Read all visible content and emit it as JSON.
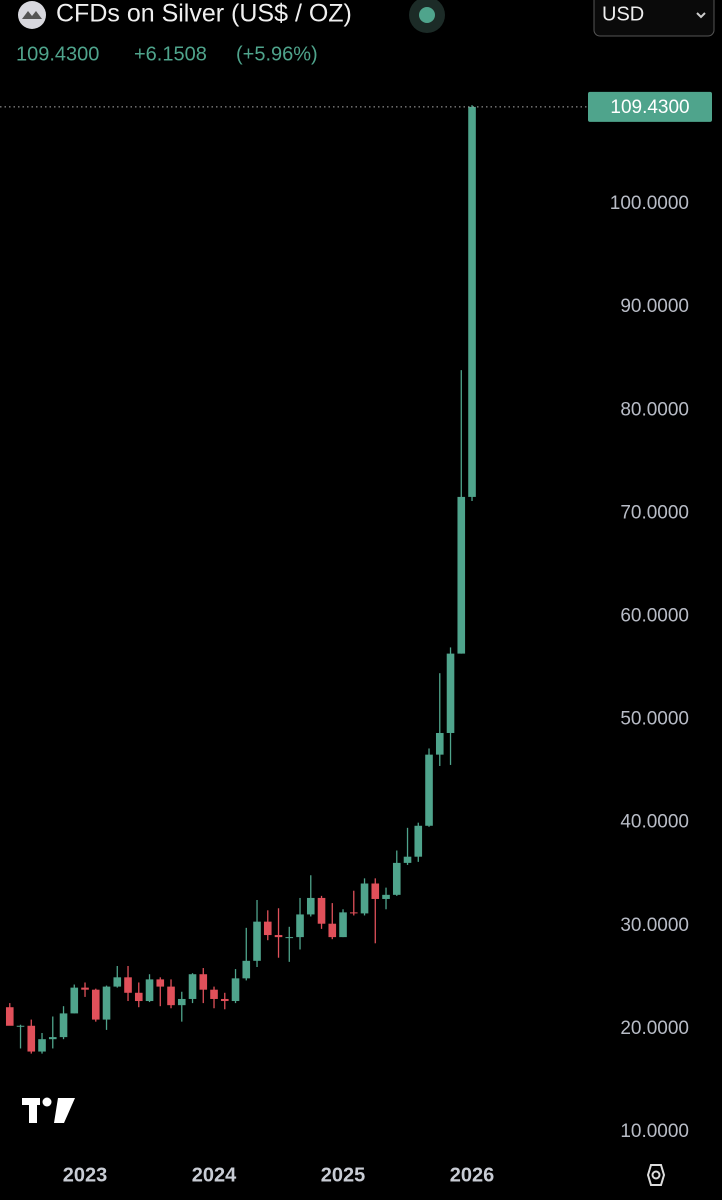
{
  "header": {
    "title": "CFDs on Silver (US$ / OZ)",
    "price": "109.4300",
    "change": "+6.1508",
    "change_pct": "(+5.96%)",
    "currency": "USD"
  },
  "chart_data": {
    "type": "candlestick",
    "categories": [
      null,
      null,
      null,
      null,
      null,
      null,
      null,
      "2023",
      null,
      null,
      null,
      null,
      null,
      null,
      null,
      null,
      null,
      null,
      null,
      "2024",
      null,
      null,
      null,
      null,
      null,
      null,
      null,
      null,
      null,
      null,
      null,
      "2025",
      null,
      null,
      null,
      null,
      null,
      null,
      null,
      null,
      null,
      null,
      null,
      "2026"
    ],
    "open": [
      22.1,
      20.3,
      20.3,
      17.8,
      19.0,
      19.2,
      21.5,
      24.0,
      23.8,
      20.9,
      24.1,
      25.0,
      23.5,
      22.7,
      24.8,
      24.1,
      22.3,
      22.9,
      25.3,
      23.8,
      22.9,
      22.7,
      24.9,
      26.6,
      30.4,
      29.1,
      28.9,
      28.9,
      31.1,
      32.7,
      30.2,
      28.9,
      31.3,
      31.2,
      34.1,
      32.6,
      33.0,
      36.1,
      36.7,
      39.7,
      46.6,
      48.7,
      56.4,
      71.6
    ],
    "high": [
      22.5,
      20.4,
      20.9,
      19.6,
      21.2,
      22.2,
      24.3,
      24.5,
      23.9,
      24.2,
      26.1,
      26.1,
      24.5,
      25.3,
      25.0,
      24.8,
      23.6,
      25.4,
      25.9,
      24.1,
      23.5,
      25.8,
      29.8,
      32.5,
      31.5,
      31.7,
      29.9,
      32.7,
      34.9,
      32.9,
      32.2,
      31.6,
      33.4,
      34.6,
      34.6,
      33.7,
      37.3,
      39.5,
      40.0,
      47.2,
      54.5,
      57.0,
      83.9,
      109.6
    ],
    "low": [
      20.4,
      18.1,
      17.6,
      17.6,
      18.1,
      19.0,
      21.5,
      23.1,
      20.7,
      19.9,
      24.0,
      22.7,
      22.1,
      22.6,
      22.2,
      22.0,
      20.7,
      22.5,
      22.5,
      22.0,
      21.9,
      22.5,
      24.7,
      26.0,
      28.6,
      26.9,
      26.5,
      27.7,
      30.9,
      29.7,
      28.7,
      28.9,
      31.0,
      31.0,
      28.3,
      31.6,
      32.9,
      35.9,
      36.2,
      39.6,
      45.5,
      45.6,
      56.4,
      71.2
    ],
    "close": [
      20.3,
      20.3,
      17.8,
      19.0,
      19.2,
      21.5,
      24.0,
      23.8,
      20.9,
      24.1,
      25.0,
      23.5,
      22.7,
      24.8,
      24.1,
      22.3,
      22.9,
      25.3,
      23.8,
      22.9,
      22.7,
      24.9,
      26.6,
      30.4,
      29.1,
      28.9,
      28.9,
      31.1,
      32.7,
      30.2,
      28.9,
      31.3,
      31.2,
      34.1,
      32.6,
      33.0,
      36.1,
      36.7,
      39.7,
      46.6,
      48.7,
      56.4,
      71.6,
      109.43
    ],
    "up_color": "#4fa48c",
    "down_color": "#e0505a",
    "last_price": {
      "value": 109.43,
      "label": "109.4300"
    },
    "ylim": [
      8.25,
      110.1
    ],
    "yticks": [
      {
        "value": 10,
        "label": "10.0000"
      },
      {
        "value": 20,
        "label": "20.0000"
      },
      {
        "value": 30,
        "label": "30.0000"
      },
      {
        "value": 40,
        "label": "40.0000"
      },
      {
        "value": 50,
        "label": "50.0000"
      },
      {
        "value": 60,
        "label": "60.0000"
      },
      {
        "value": 70,
        "label": "70.0000"
      },
      {
        "value": 80,
        "label": "80.0000"
      },
      {
        "value": 90,
        "label": "90.0000"
      },
      {
        "value": 100,
        "label": "100.0000"
      }
    ],
    "grid": false
  }
}
